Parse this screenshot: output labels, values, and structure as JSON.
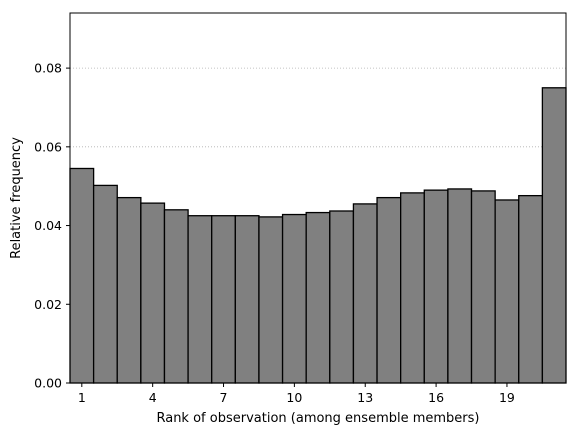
{
  "chart_data": {
    "type": "bar",
    "title": "",
    "xlabel": "Rank of observation (among ensemble members)",
    "ylabel": "Relative frequency",
    "categories": [
      1,
      2,
      3,
      4,
      5,
      6,
      7,
      8,
      9,
      10,
      11,
      12,
      13,
      14,
      15,
      16,
      17,
      18,
      19,
      20,
      21
    ],
    "values": [
      0.0545,
      0.0502,
      0.0471,
      0.0457,
      0.044,
      0.0425,
      0.0425,
      0.0425,
      0.0422,
      0.0428,
      0.0433,
      0.0437,
      0.0455,
      0.0471,
      0.0483,
      0.049,
      0.0493,
      0.0488,
      0.0465,
      0.0476,
      0.075
    ],
    "xlim": [
      0.5,
      21.5
    ],
    "ylim": [
      0,
      0.094
    ],
    "xticks": [
      1,
      4,
      7,
      10,
      13,
      16,
      19
    ],
    "xtick_labels": [
      "1",
      "4",
      "7",
      "10",
      "13",
      "16",
      "19"
    ],
    "yticks": [
      0,
      0.02,
      0.04,
      0.06,
      0.08
    ],
    "ytick_labels": [
      "0.00",
      "0.02",
      "0.04",
      "0.06",
      "0.08"
    ],
    "grid": "y-dotted",
    "bar_color": "#808080",
    "bar_edge_color": "#000000",
    "grid_color": "#b0b0b0"
  }
}
